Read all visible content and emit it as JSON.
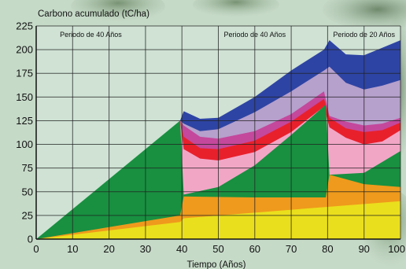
{
  "chart_data": {
    "type": "area",
    "ylabel": "Carbono acumulado (tC/ha)",
    "xlabel": "Tiempo (Años)",
    "xlim": [
      0,
      100
    ],
    "ylim": [
      0,
      225
    ],
    "xticks": [
      0,
      10,
      20,
      30,
      40,
      50,
      60,
      70,
      80,
      90,
      100
    ],
    "yticks": [
      0,
      25,
      50,
      75,
      100,
      125,
      150,
      175,
      200,
      225
    ],
    "grid": true,
    "annotations": [
      {
        "text": "Periodo de 40 Años",
        "x": 15
      },
      {
        "text": "Periodo de 40 Años",
        "x": 60
      },
      {
        "text": "Periodo de 20 Años",
        "x": 90
      }
    ],
    "colors": {
      "yellow": "#eadf1c",
      "orange": "#ef9a1c",
      "green": "#189040",
      "pink": "#f2a6c6",
      "red": "#e8202c",
      "magenta": "#c4489c",
      "lavender": "#b6a0cc",
      "blue": "#2e44a4",
      "grid": "#222222",
      "plot_bg": "#cfe2d4"
    },
    "layers": [
      {
        "color": "yellow",
        "x": [
          0,
          39.5,
          40.5,
          80,
          100
        ],
        "y": [
          0,
          18,
          22,
          34,
          40
        ]
      },
      {
        "color": "orange",
        "x": [
          0,
          39.5,
          40.5,
          60,
          79.5,
          80.5,
          90,
          100
        ],
        "y": [
          0,
          25,
          45,
          44,
          44,
          68,
          58,
          55
        ]
      },
      {
        "color": "green",
        "x": [
          0,
          39.5,
          40.5,
          50,
          60,
          70,
          79.5,
          80.5,
          90,
          100
        ],
        "y": [
          0,
          125,
          47,
          55,
          78,
          110,
          142,
          68,
          70,
          93
        ]
      },
      {
        "color": "pink",
        "x": [
          39.5,
          40.5,
          45,
          50,
          60,
          70,
          79,
          80.5,
          85,
          90,
          95,
          100
        ],
        "y": [
          125,
          95,
          85,
          83,
          92,
          113,
          140,
          118,
          107,
          100,
          103,
          115
        ]
      },
      {
        "color": "red",
        "x": [
          39.5,
          40.5,
          45,
          50,
          60,
          70,
          79,
          80.5,
          85,
          90,
          95,
          100
        ],
        "y": [
          125,
          108,
          96,
          95,
          104,
          124,
          148,
          128,
          117,
          113,
          115,
          123
        ]
      },
      {
        "color": "magenta",
        "x": [
          39.5,
          40.5,
          45,
          50,
          60,
          70,
          79,
          80.5,
          85,
          90,
          95,
          100
        ],
        "y": [
          125,
          120,
          108,
          106,
          114,
          132,
          156,
          130,
          124,
          120,
          122,
          128
        ]
      },
      {
        "color": "lavender",
        "x": [
          39.5,
          40.5,
          45,
          50,
          60,
          70,
          79,
          80.5,
          85,
          90,
          95,
          100
        ],
        "y": [
          125,
          122,
          114,
          116,
          134,
          156,
          178,
          182,
          165,
          158,
          162,
          168
        ]
      },
      {
        "color": "blue",
        "x": [
          39.5,
          40.5,
          45,
          50,
          60,
          70,
          79,
          80.5,
          85,
          90,
          95,
          100
        ],
        "y": [
          125,
          135,
          127,
          128,
          150,
          178,
          200,
          210,
          195,
          194,
          202,
          210
        ]
      }
    ]
  }
}
